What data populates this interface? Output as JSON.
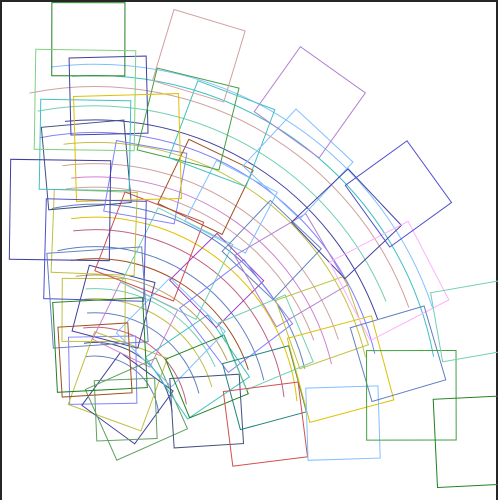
{
  "canvas": {
    "background": "#ffffff",
    "border_color": "#262626",
    "description_items": "rotated-squares-and-arcs-fan"
  },
  "palette": [
    "#b07fd0",
    "#80d080",
    "#d080d0",
    "#4040a0",
    "#c0a060",
    "#6080c0",
    "#a05020",
    "#208020",
    "#40c0c0",
    "#d05050",
    "#8080ff",
    "#c0c040",
    "#208080",
    "#a040c0",
    "#40a040",
    "#d0a0a0",
    "#5050d0",
    "#80c0ff",
    "#c06080",
    "#60a060",
    "#ffb0ff",
    "#405080",
    "#e0c000",
    "#70d0b0"
  ]
}
